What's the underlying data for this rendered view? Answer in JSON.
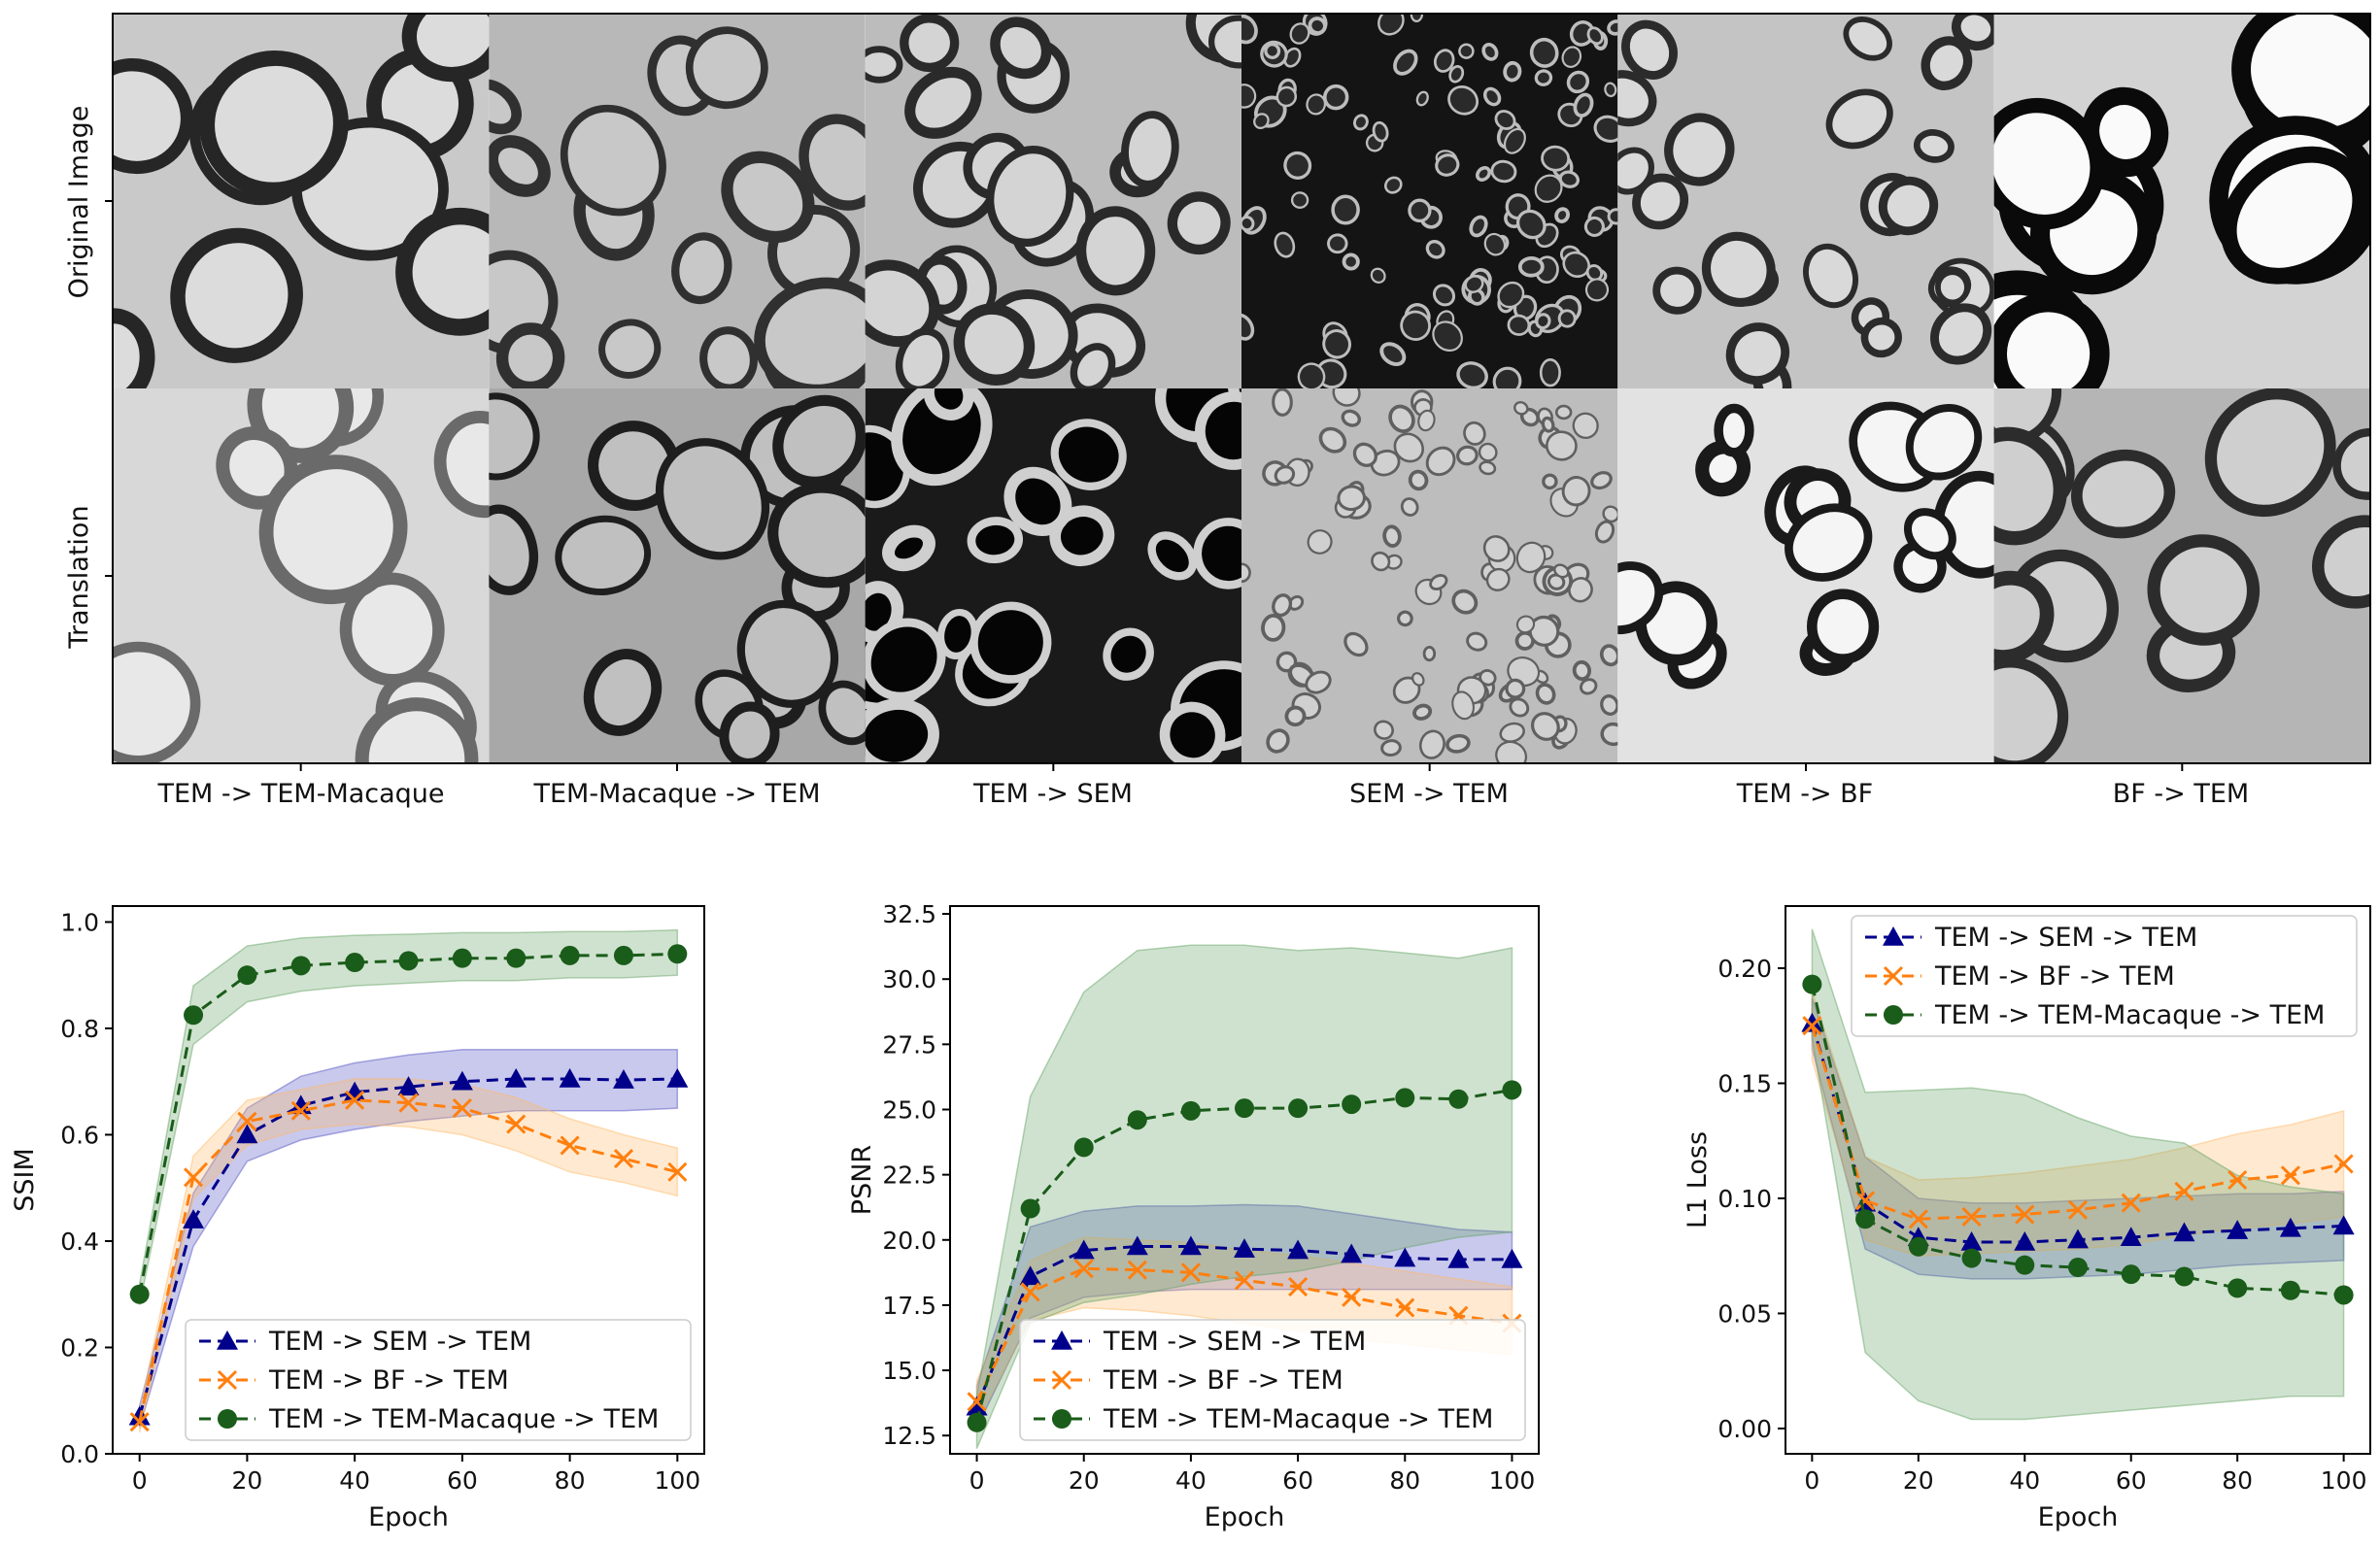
{
  "image_grid": {
    "row_labels": [
      "Original Image",
      "Translation"
    ],
    "column_labels": [
      "TEM -> TEM-Macaque",
      "TEM-Macaque -> TEM",
      "TEM -> SEM",
      "SEM -> TEM",
      "TEM -> BF",
      "BF -> TEM"
    ],
    "styles": [
      {
        "bg": "#c9c9c9",
        "ring": "#262626",
        "fill": "#dcdcdc",
        "count": 9,
        "r": 55,
        "w": 14
      },
      {
        "bg": "#b8b8b8",
        "ring": "#303030",
        "fill": "#c8c8c8",
        "count": 16,
        "r": 42,
        "w": 10
      },
      {
        "bg": "#bcbcbc",
        "ring": "#2a2a2a",
        "fill": "#d4d4d4",
        "count": 24,
        "r": 32,
        "w": 9
      },
      {
        "bg": "#141414",
        "ring": "#bdbdbd",
        "fill": "#2a2a2a",
        "count": 110,
        "r": 11,
        "w": 3
      },
      {
        "bg": "#c4c4c4",
        "ring": "#2b2b2b",
        "fill": "#d9d9d9",
        "count": 24,
        "r": 26,
        "w": 8
      },
      {
        "bg": "#d3d3d3",
        "ring": "#0a0a0a",
        "fill": "#fafafa",
        "count": 10,
        "r": 60,
        "w": 20
      },
      {
        "bg": "#d8d8d8",
        "ring": "#6a6a6a",
        "fill": "#e8e8e8",
        "count": 9,
        "r": 55,
        "w": 12
      },
      {
        "bg": "#a8a8a8",
        "ring": "#1e1e1e",
        "fill": "#c0c0c0",
        "count": 16,
        "r": 42,
        "w": 10
      },
      {
        "bg": "#1a1a1a",
        "ring": "#cfcfcf",
        "fill": "#050505",
        "count": 22,
        "r": 34,
        "w": 10
      },
      {
        "bg": "#bdbdbd",
        "ring": "#606060",
        "fill": "#d0d0d0",
        "count": 110,
        "r": 11,
        "w": 3
      },
      {
        "bg": "#e2e2e2",
        "ring": "#1a1a1a",
        "fill": "#f5f5f5",
        "count": 16,
        "r": 34,
        "w": 11
      },
      {
        "bg": "#b5b5b5",
        "ring": "#2c2c2c",
        "fill": "#cfcfcf",
        "count": 12,
        "r": 50,
        "w": 12
      }
    ]
  },
  "colors": {
    "series1": "#00008b",
    "series2": "#ff7f0e",
    "series3": "#1a5c1a",
    "band1": "#4b4bc2",
    "band2": "#ffb866",
    "band3": "#5f9f5f"
  },
  "chart_data": [
    {
      "type": "line",
      "xlabel": "Epoch",
      "ylabel": "SSIM",
      "xlim": [
        -5,
        105
      ],
      "ylim": [
        0.0,
        1.03
      ],
      "xticks": [
        0,
        20,
        40,
        60,
        80,
        100
      ],
      "xticklabels": [
        "0",
        "20",
        "40",
        "60",
        "80",
        "100"
      ],
      "yticks": [
        0.0,
        0.2,
        0.4,
        0.6,
        0.8,
        1.0
      ],
      "yticklabels": [
        "0.0",
        "0.2",
        "0.4",
        "0.6",
        "0.8",
        "1.0"
      ],
      "legend": "lower-right",
      "x": [
        0,
        10,
        20,
        30,
        40,
        50,
        60,
        70,
        80,
        90,
        100
      ],
      "series": [
        {
          "name": "TEM -> SEM -> TEM",
          "marker": "triangle",
          "values": [
            0.07,
            0.44,
            0.6,
            0.655,
            0.68,
            0.69,
            0.7,
            0.705,
            0.705,
            0.703,
            0.705
          ],
          "lower": [
            0.05,
            0.39,
            0.55,
            0.59,
            0.61,
            0.625,
            0.635,
            0.645,
            0.645,
            0.645,
            0.65
          ],
          "upper": [
            0.09,
            0.49,
            0.65,
            0.71,
            0.735,
            0.75,
            0.76,
            0.76,
            0.76,
            0.76,
            0.76
          ]
        },
        {
          "name": "TEM -> BF -> TEM",
          "marker": "x",
          "values": [
            0.06,
            0.52,
            0.625,
            0.645,
            0.665,
            0.66,
            0.65,
            0.62,
            0.58,
            0.555,
            0.53
          ],
          "lower": [
            0.04,
            0.48,
            0.58,
            0.61,
            0.62,
            0.615,
            0.6,
            0.57,
            0.53,
            0.51,
            0.485
          ],
          "upper": [
            0.08,
            0.56,
            0.665,
            0.685,
            0.705,
            0.705,
            0.695,
            0.67,
            0.63,
            0.6,
            0.575
          ]
        },
        {
          "name": "TEM -> TEM-Macaque -> TEM",
          "marker": "circle",
          "values": [
            0.3,
            0.825,
            0.9,
            0.918,
            0.924,
            0.927,
            0.932,
            0.932,
            0.937,
            0.937,
            0.94
          ],
          "lower": [
            0.28,
            0.77,
            0.85,
            0.87,
            0.88,
            0.885,
            0.89,
            0.89,
            0.895,
            0.895,
            0.9
          ],
          "upper": [
            0.32,
            0.88,
            0.955,
            0.97,
            0.975,
            0.977,
            0.98,
            0.98,
            0.982,
            0.982,
            0.985
          ]
        }
      ]
    },
    {
      "type": "line",
      "xlabel": "Epoch",
      "ylabel": "PSNR",
      "xlim": [
        -5,
        105
      ],
      "ylim": [
        11.8,
        32.8
      ],
      "xticks": [
        0,
        20,
        40,
        60,
        80,
        100
      ],
      "xticklabels": [
        "0",
        "20",
        "40",
        "60",
        "80",
        "100"
      ],
      "yticks": [
        12.5,
        15.0,
        17.5,
        20.0,
        22.5,
        25.0,
        27.5,
        30.0,
        32.5
      ],
      "yticklabels": [
        "12.5",
        "15.0",
        "17.5",
        "20.0",
        "22.5",
        "25.0",
        "27.5",
        "30.0",
        "32.5"
      ],
      "legend": "lower-right",
      "x": [
        0,
        10,
        20,
        30,
        40,
        50,
        60,
        70,
        80,
        90,
        100
      ],
      "series": [
        {
          "name": "TEM -> SEM -> TEM",
          "marker": "triangle",
          "values": [
            13.6,
            18.6,
            19.6,
            19.75,
            19.75,
            19.65,
            19.6,
            19.45,
            19.3,
            19.25,
            19.25
          ],
          "lower": [
            12.8,
            17.0,
            17.8,
            18.0,
            18.1,
            18.1,
            18.1,
            18.1,
            18.1,
            18.1,
            18.1
          ],
          "upper": [
            14.4,
            20.5,
            21.1,
            21.3,
            21.3,
            21.35,
            21.3,
            21.0,
            20.7,
            20.4,
            20.3
          ]
        },
        {
          "name": "TEM -> BF -> TEM",
          "marker": "x",
          "values": [
            13.8,
            18.0,
            18.9,
            18.85,
            18.75,
            18.45,
            18.2,
            17.8,
            17.4,
            17.1,
            16.8
          ],
          "lower": [
            13.0,
            16.9,
            17.4,
            17.3,
            17.1,
            16.8,
            16.5,
            16.2,
            16.0,
            15.8,
            15.6
          ],
          "upper": [
            14.6,
            19.2,
            20.1,
            20.0,
            19.9,
            19.6,
            19.4,
            19.1,
            18.8,
            18.5,
            18.2
          ]
        },
        {
          "name": "TEM -> TEM-Macaque -> TEM",
          "marker": "circle",
          "values": [
            13.0,
            21.2,
            23.55,
            24.6,
            24.95,
            25.05,
            25.05,
            25.2,
            25.45,
            25.4,
            25.75
          ],
          "lower": [
            12.0,
            16.8,
            17.6,
            17.9,
            18.3,
            18.6,
            18.8,
            19.2,
            19.7,
            20.1,
            20.3
          ],
          "upper": [
            14.0,
            25.5,
            29.5,
            31.1,
            31.3,
            31.3,
            31.1,
            31.2,
            31.0,
            30.8,
            31.2
          ]
        }
      ]
    },
    {
      "type": "line",
      "xlabel": "Epoch",
      "ylabel": "L1 Loss",
      "xlim": [
        -5,
        105
      ],
      "ylim": [
        -0.011,
        0.227
      ],
      "xticks": [
        0,
        20,
        40,
        60,
        80,
        100
      ],
      "xticklabels": [
        "0",
        "20",
        "40",
        "60",
        "80",
        "100"
      ],
      "yticks": [
        0.0,
        0.05,
        0.1,
        0.15,
        0.2
      ],
      "yticklabels": [
        "0.00",
        "0.05",
        "0.10",
        "0.15",
        "0.20"
      ],
      "legend": "upper-right",
      "x": [
        0,
        10,
        20,
        30,
        40,
        50,
        60,
        70,
        80,
        90,
        100
      ],
      "series": [
        {
          "name": "TEM -> SEM -> TEM",
          "marker": "triangle",
          "values": [
            0.176,
            0.098,
            0.083,
            0.081,
            0.081,
            0.082,
            0.083,
            0.085,
            0.086,
            0.087,
            0.088
          ],
          "lower": [
            0.165,
            0.078,
            0.067,
            0.065,
            0.065,
            0.066,
            0.067,
            0.069,
            0.071,
            0.072,
            0.073
          ],
          "upper": [
            0.187,
            0.118,
            0.1,
            0.098,
            0.098,
            0.099,
            0.1,
            0.101,
            0.102,
            0.102,
            0.103
          ]
        },
        {
          "name": "TEM -> BF -> TEM",
          "marker": "x",
          "values": [
            0.175,
            0.099,
            0.091,
            0.092,
            0.093,
            0.095,
            0.098,
            0.103,
            0.108,
            0.11,
            0.115
          ],
          "lower": [
            0.16,
            0.082,
            0.075,
            0.076,
            0.077,
            0.078,
            0.08,
            0.084,
            0.087,
            0.089,
            0.092
          ],
          "upper": [
            0.19,
            0.118,
            0.108,
            0.109,
            0.111,
            0.114,
            0.117,
            0.122,
            0.128,
            0.132,
            0.138
          ]
        },
        {
          "name": "TEM -> TEM-Macaque -> TEM",
          "marker": "circle",
          "values": [
            0.193,
            0.091,
            0.079,
            0.074,
            0.071,
            0.07,
            0.067,
            0.066,
            0.061,
            0.06,
            0.058
          ],
          "lower": [
            0.17,
            0.033,
            0.012,
            0.004,
            0.004,
            0.006,
            0.008,
            0.01,
            0.012,
            0.014,
            0.014
          ],
          "upper": [
            0.217,
            0.146,
            0.147,
            0.148,
            0.145,
            0.135,
            0.127,
            0.124,
            0.11,
            0.105,
            0.102
          ]
        }
      ]
    }
  ]
}
